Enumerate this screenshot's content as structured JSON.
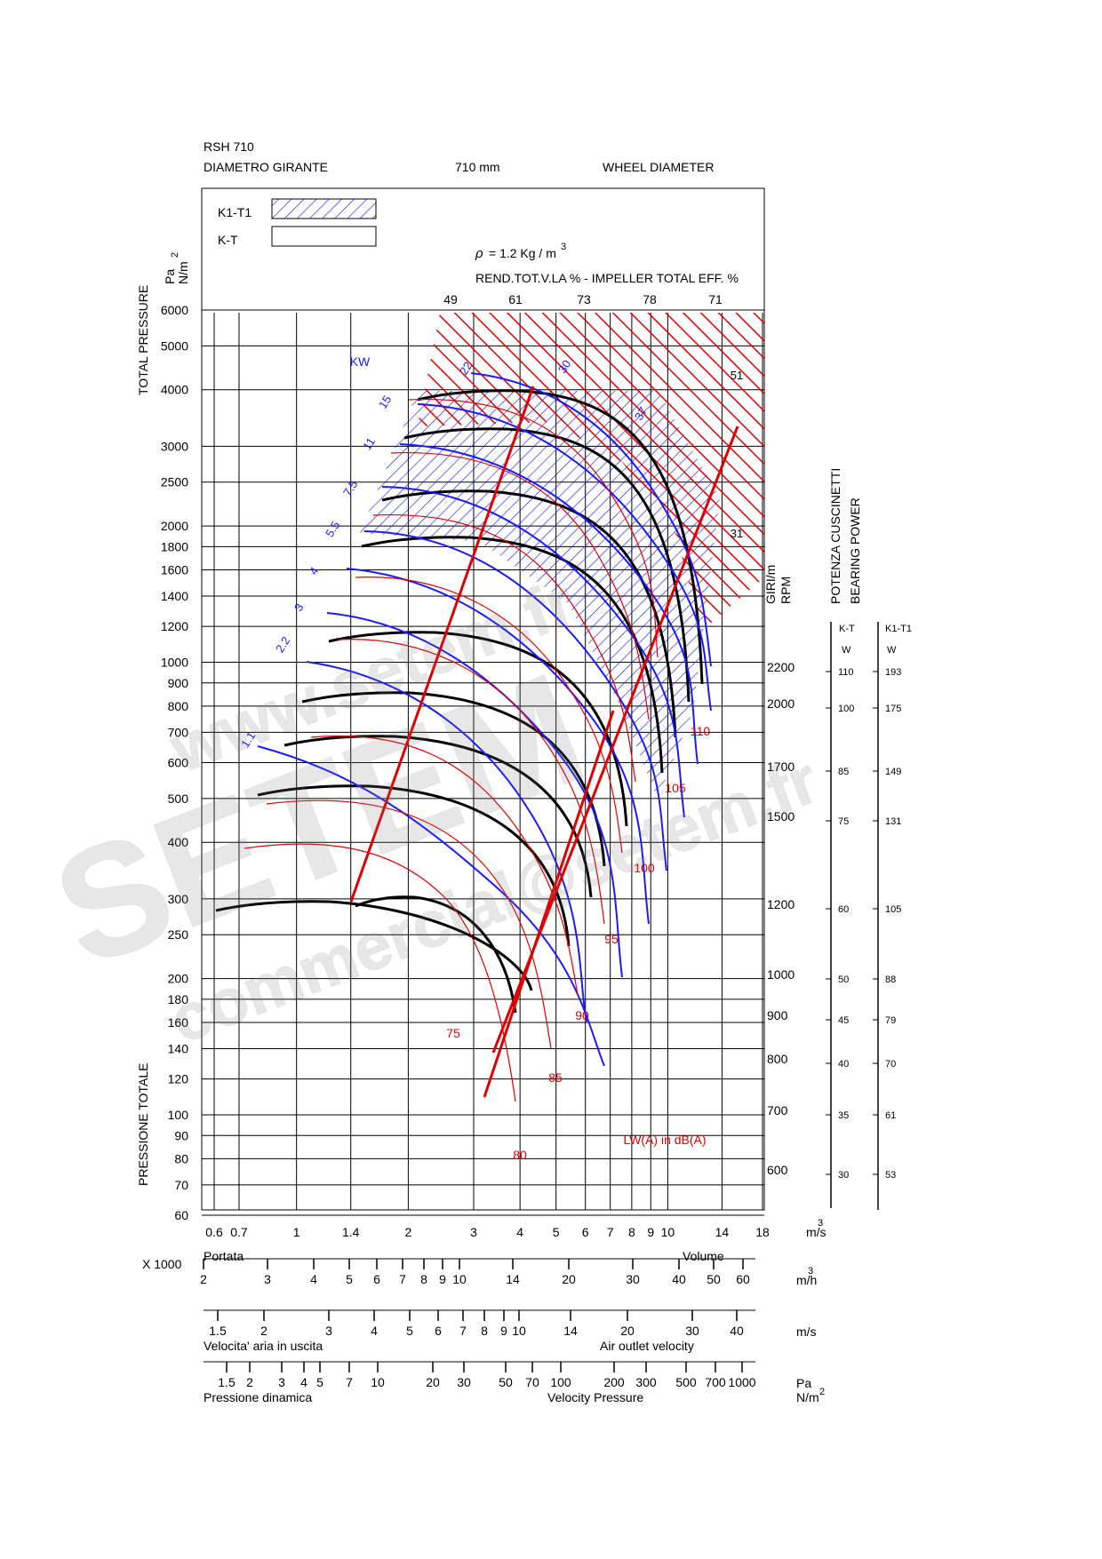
{
  "header": {
    "model": "RSH 710",
    "diameter_label_it": "DIAMETRO GIRANTE",
    "diameter_value": "710 mm",
    "diameter_label_en": "WHEEL DIAMETER"
  },
  "legend": {
    "items": [
      {
        "label": "K1-T1",
        "style": "hatched",
        "color": "#1a1aff"
      },
      {
        "label": "K-T",
        "style": "outline",
        "color": "#000000"
      }
    ]
  },
  "density": {
    "prefix": "ρ",
    "text": "= 1.2 Kg / m",
    "sup": "3"
  },
  "efficiency": {
    "title": "REND.TOT.V.LA % - IMPELLER TOTAL EFF. %",
    "labels": [
      "49",
      "61",
      "73",
      "78",
      "71"
    ]
  },
  "axes": {
    "y_title_top": "TOTAL PRESSURE",
    "y_title_bottom": "PRESSIONE TOTALE",
    "y_unit_1": "Pa",
    "y_unit_2": "N/m",
    "y_unit_sup": "2",
    "x_unit_m3s": "m",
    "x_unit_m3s_sup": "3",
    "x_unit_m3s_tail": "/s"
  },
  "chart_data": {
    "type": "line",
    "title": "RSH 710",
    "xlabel": "Portata / Volume (m3/s)",
    "ylabel": "TOTAL PRESSURE (Pa N/m2)",
    "xscale": "log",
    "yscale": "log",
    "xlim": [
      0.55,
      18
    ],
    "ylim": [
      60,
      6200
    ],
    "x_ticks": [
      "0.6",
      "0.7",
      "1",
      "1.4",
      "2",
      "3",
      "4",
      "5",
      "6",
      "7",
      "8",
      "9",
      "10",
      "14",
      "18"
    ],
    "y_ticks": [
      "6000",
      "5000",
      "4000",
      "3000",
      "2500",
      "2000",
      "1800",
      "1600",
      "1400",
      "1200",
      "1000",
      "900",
      "800",
      "700",
      "600",
      "500",
      "400",
      "300",
      "250",
      "200",
      "180",
      "160",
      "140",
      "120",
      "100",
      "90",
      "80",
      "70",
      "60"
    ],
    "grid": true,
    "rpm_lines": {
      "axis_title_1": "GIRI/m",
      "axis_title_2": "RPM",
      "values": [
        "2200",
        "2000",
        "1700",
        "1500",
        "1200",
        "1000",
        "900",
        "800",
        "700",
        "600"
      ]
    },
    "bearing_power": {
      "title_1": "POTENZA CUSCINETTI",
      "title_2": "BEARING POWER",
      "col_kt": "K-T",
      "col_k1t1": "K1-T1",
      "unit": "W",
      "kt_values": [
        "110",
        "100",
        "85",
        "75",
        "60",
        "50",
        "45",
        "40",
        "35",
        "30"
      ],
      "k1t1_values": [
        "193",
        "175",
        "149",
        "131",
        "105",
        "88",
        "79",
        "70",
        "61",
        "53"
      ]
    },
    "kw_lines": {
      "label": "KW",
      "color": "#1a1aff",
      "values": [
        "1.1",
        "2.2",
        "3",
        "4",
        "5.5",
        "7.5",
        "11",
        "15",
        "22",
        "30",
        "37",
        "51",
        "31"
      ]
    },
    "noise_lines": {
      "label": "LW(A) in dB(A)",
      "color": "#e00000",
      "values": [
        "75",
        "80",
        "85",
        "90",
        "95",
        "100",
        "105",
        "110"
      ]
    }
  },
  "bottom_scales": {
    "portata": "Portata",
    "volume": "Volume",
    "multiplier": "X 1000",
    "m3h_unit": "m",
    "m3h_sup": "3",
    "m3h_tail": "/h",
    "m3h_ticks": [
      "2",
      "3",
      "4",
      "5",
      "6",
      "7",
      "8",
      "9",
      "10",
      "14",
      "20",
      "30",
      "40",
      "50",
      "60"
    ],
    "velocity_unit": "m/s",
    "velocity_ticks": [
      "1.5",
      "2",
      "3",
      "4",
      "5",
      "6",
      "7",
      "8",
      "9",
      "10",
      "14",
      "20",
      "30",
      "40"
    ],
    "velocity_label_it": "Velocita' aria in uscita",
    "velocity_label_en": "Air outlet velocity",
    "pressure_unit_1": "Pa",
    "pressure_unit_2": "N/m",
    "pressure_sup": "2",
    "pressure_ticks": [
      "1.5",
      "2",
      "3",
      "4",
      "5",
      "7",
      "10",
      "20",
      "30",
      "50",
      "70",
      "100",
      "200",
      "300",
      "500",
      "700",
      "1000"
    ],
    "pressure_label_it": "Pressione dinamica",
    "pressure_label_en": "Velocity Pressure"
  },
  "watermark": {
    "line1": "www.setem.fr",
    "line2": "SETEM",
    "line3": "commercial@setem.fr"
  }
}
